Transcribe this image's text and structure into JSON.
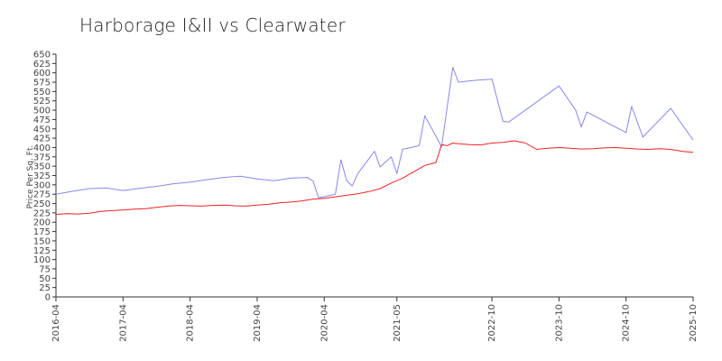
{
  "chart_data": {
    "type": "line",
    "title": "Harborage I&II vs Clearwater",
    "xlabel": "",
    "ylabel": "Price Per Sq. Ft.",
    "ylim": [
      0,
      650
    ],
    "yticks": [
      0,
      25,
      50,
      75,
      100,
      125,
      150,
      175,
      200,
      225,
      250,
      275,
      300,
      325,
      350,
      375,
      400,
      425,
      450,
      475,
      500,
      525,
      550,
      575,
      600,
      625,
      650
    ],
    "xlim": [
      "2016-04",
      "2025-10"
    ],
    "xticks": [
      "2016-04",
      "2017-04",
      "2018-04",
      "2019-04",
      "2020-04",
      "2021-05",
      "2022-10",
      "2023-10",
      "2024-10",
      "2025-10"
    ],
    "grid": false,
    "legend": "none",
    "series": [
      {
        "color": "#8888ee",
        "x": [
          "2016-04",
          "2016-07",
          "2016-10",
          "2017-01",
          "2017-04",
          "2017-07",
          "2017-10",
          "2018-01",
          "2018-04",
          "2018-07",
          "2018-10",
          "2019-01",
          "2019-04",
          "2019-07",
          "2019-10",
          "2020-01",
          "2020-02",
          "2020-03",
          "2020-06",
          "2020-07",
          "2020-08",
          "2020-09",
          "2020-10",
          "2021-01",
          "2021-02",
          "2021-04",
          "2021-05",
          "2021-06",
          "2021-09",
          "2021-10",
          "2022-01",
          "2022-03",
          "2022-04",
          "2022-07",
          "2022-10",
          "2022-12",
          "2023-01",
          "2023-10",
          "2024-01",
          "2024-02",
          "2024-03",
          "2024-10",
          "2024-11",
          "2025-01",
          "2025-06",
          "2025-10"
        ],
        "values": [
          275,
          283,
          290,
          292,
          285,
          291,
          296,
          303,
          307,
          314,
          320,
          323,
          316,
          311,
          318,
          320,
          310,
          265,
          275,
          367,
          312,
          297,
          330,
          390,
          348,
          375,
          330,
          395,
          405,
          485,
          402,
          615,
          575,
          580,
          583,
          470,
          468,
          565,
          500,
          455,
          495,
          440,
          510,
          428,
          505,
          420
        ]
      },
      {
        "color": "#ee2222",
        "x": [
          "2016-04",
          "2016-06",
          "2016-08",
          "2016-10",
          "2016-12",
          "2017-02",
          "2017-04",
          "2017-06",
          "2017-08",
          "2017-10",
          "2017-12",
          "2018-02",
          "2018-04",
          "2018-06",
          "2018-08",
          "2018-10",
          "2018-12",
          "2019-02",
          "2019-04",
          "2019-06",
          "2019-08",
          "2019-10",
          "2019-12",
          "2020-02",
          "2020-04",
          "2020-06",
          "2020-08",
          "2020-10",
          "2020-12",
          "2021-02",
          "2021-04",
          "2021-06",
          "2021-08",
          "2021-10",
          "2021-12",
          "2022-01",
          "2022-02",
          "2022-03",
          "2022-04",
          "2022-06",
          "2022-08",
          "2022-10",
          "2022-12",
          "2023-02",
          "2023-04",
          "2023-06",
          "2023-08",
          "2023-10",
          "2023-12",
          "2024-02",
          "2024-04",
          "2024-06",
          "2024-08",
          "2024-10",
          "2024-12",
          "2025-02",
          "2025-04",
          "2025-06",
          "2025-08",
          "2025-10"
        ],
        "values": [
          221,
          223,
          222,
          224,
          229,
          231,
          233,
          235,
          236,
          240,
          243,
          245,
          244,
          243,
          245,
          246,
          244,
          243,
          246,
          248,
          252,
          254,
          257,
          262,
          264,
          268,
          272,
          276,
          282,
          290,
          305,
          318,
          335,
          352,
          360,
          408,
          405,
          412,
          410,
          408,
          407,
          412,
          414,
          418,
          412,
          395,
          398,
          400,
          398,
          396,
          397,
          399,
          400,
          398,
          396,
          395,
          397,
          395,
          390,
          387
        ]
      }
    ]
  }
}
